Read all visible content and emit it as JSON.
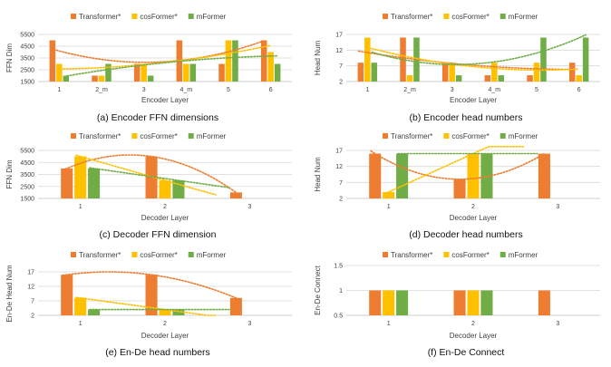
{
  "colors": {
    "transformer": "#ed7d31",
    "cosformer": "#ffc000",
    "mformer": "#70ad47",
    "grid": "#d9d9d9",
    "axis": "#bfbfbf",
    "text": "#404040"
  },
  "chart_data": [
    {
      "type": "bar",
      "caption": "(a) Encoder FFN dimensions",
      "xlabel": "Encoder Layer",
      "ylabel": "FFN Dim",
      "ylim": [
        1500,
        5500
      ],
      "yticks": [
        1500,
        2500,
        3500,
        4500,
        5500
      ],
      "categories": [
        "1",
        "2_m",
        "3",
        "4_m",
        "5",
        "6"
      ],
      "legend_position": "top",
      "trendlines": "dotted polynomial per series",
      "series": [
        {
          "name": "Transformer*",
          "key": "transformer",
          "values": [
            5000,
            2000,
            3000,
            5000,
            3000,
            5000
          ]
        },
        {
          "name": "cosFormer*",
          "key": "cosformer",
          "values": [
            3000,
            2000,
            3000,
            3000,
            5000,
            4000
          ]
        },
        {
          "name": "mFormer",
          "key": "mformer",
          "values": [
            2000,
            3000,
            2000,
            3000,
            5000,
            3000
          ]
        }
      ]
    },
    {
      "type": "bar",
      "caption": "(b) Encoder head numbers",
      "xlabel": "Encoder Layer",
      "ylabel": "Head Num",
      "ylim": [
        2,
        17
      ],
      "yticks": [
        2,
        7,
        12,
        17
      ],
      "categories": [
        "1",
        "2_m",
        "3",
        "4_m",
        "5",
        "6"
      ],
      "legend_position": "top",
      "trendlines": "dotted polynomial per series",
      "series": [
        {
          "name": "Transformer*",
          "key": "transformer",
          "values": [
            8,
            16,
            8,
            4,
            4,
            8
          ]
        },
        {
          "name": "cosFormer*",
          "key": "cosformer",
          "values": [
            16,
            4,
            8,
            8,
            8,
            4
          ]
        },
        {
          "name": "mFormer",
          "key": "mformer",
          "values": [
            8,
            16,
            4,
            4,
            16,
            16
          ]
        }
      ]
    },
    {
      "type": "bar",
      "caption": "(c) Decoder FFN dimension",
      "xlabel": "Decoder Layer",
      "ylabel": "FFN Dim",
      "ylim": [
        1500,
        5500
      ],
      "yticks": [
        1500,
        2500,
        3500,
        4500,
        5500
      ],
      "categories": [
        "1",
        "2",
        "3"
      ],
      "legend_position": "top",
      "trendlines": "dotted polynomial per series",
      "series": [
        {
          "name": "Transformer*",
          "key": "transformer",
          "values": [
            4000,
            5000,
            2000
          ]
        },
        {
          "name": "cosFormer*",
          "key": "cosformer",
          "values": [
            5000,
            3000,
            null
          ]
        },
        {
          "name": "mFormer",
          "key": "mformer",
          "values": [
            4000,
            3000,
            null
          ]
        }
      ]
    },
    {
      "type": "bar",
      "caption": "(d) Decoder head numbers",
      "xlabel": "Decoder Layer",
      "ylabel": "Head Num",
      "ylim": [
        2,
        17
      ],
      "yticks": [
        2,
        7,
        12,
        17
      ],
      "categories": [
        "1",
        "2",
        "3"
      ],
      "legend_position": "top",
      "trendlines": "dotted polynomial per series",
      "series": [
        {
          "name": "Transformer*",
          "key": "transformer",
          "values": [
            16,
            8,
            16
          ]
        },
        {
          "name": "cosFormer*",
          "key": "cosformer",
          "values": [
            4,
            16,
            null
          ]
        },
        {
          "name": "mFormer",
          "key": "mformer",
          "values": [
            16,
            16,
            null
          ]
        }
      ]
    },
    {
      "type": "bar",
      "caption": "(e) En-De head numbers",
      "xlabel": "Decoder Layer",
      "ylabel": "En-De Head Num",
      "ylim": [
        2,
        17
      ],
      "yticks": [
        2,
        7,
        12,
        17
      ],
      "categories": [
        "1",
        "2",
        "3"
      ],
      "legend_position": "top",
      "trendlines": "dotted polynomial per series",
      "series": [
        {
          "name": "Transformer*",
          "key": "transformer",
          "values": [
            16,
            16,
            8
          ]
        },
        {
          "name": "cosFormer*",
          "key": "cosformer",
          "values": [
            8,
            4,
            null
          ]
        },
        {
          "name": "mFormer",
          "key": "mformer",
          "values": [
            4,
            4,
            null
          ]
        }
      ]
    },
    {
      "type": "bar",
      "caption": "(f) En-De Connect",
      "xlabel": "Decoder Layer",
      "ylabel": "En-De Connect",
      "ylim": [
        0.5,
        1.5
      ],
      "yticks": [
        0.5,
        1,
        1.5
      ],
      "categories": [
        "1",
        "2",
        "3"
      ],
      "legend_position": "top",
      "trendlines": "none",
      "series": [
        {
          "name": "Transformer*",
          "key": "transformer",
          "values": [
            1,
            1,
            1
          ]
        },
        {
          "name": "cosFormer*",
          "key": "cosformer",
          "values": [
            1,
            1,
            null
          ]
        },
        {
          "name": "mFormer",
          "key": "mformer",
          "values": [
            1,
            1,
            null
          ]
        }
      ]
    }
  ]
}
